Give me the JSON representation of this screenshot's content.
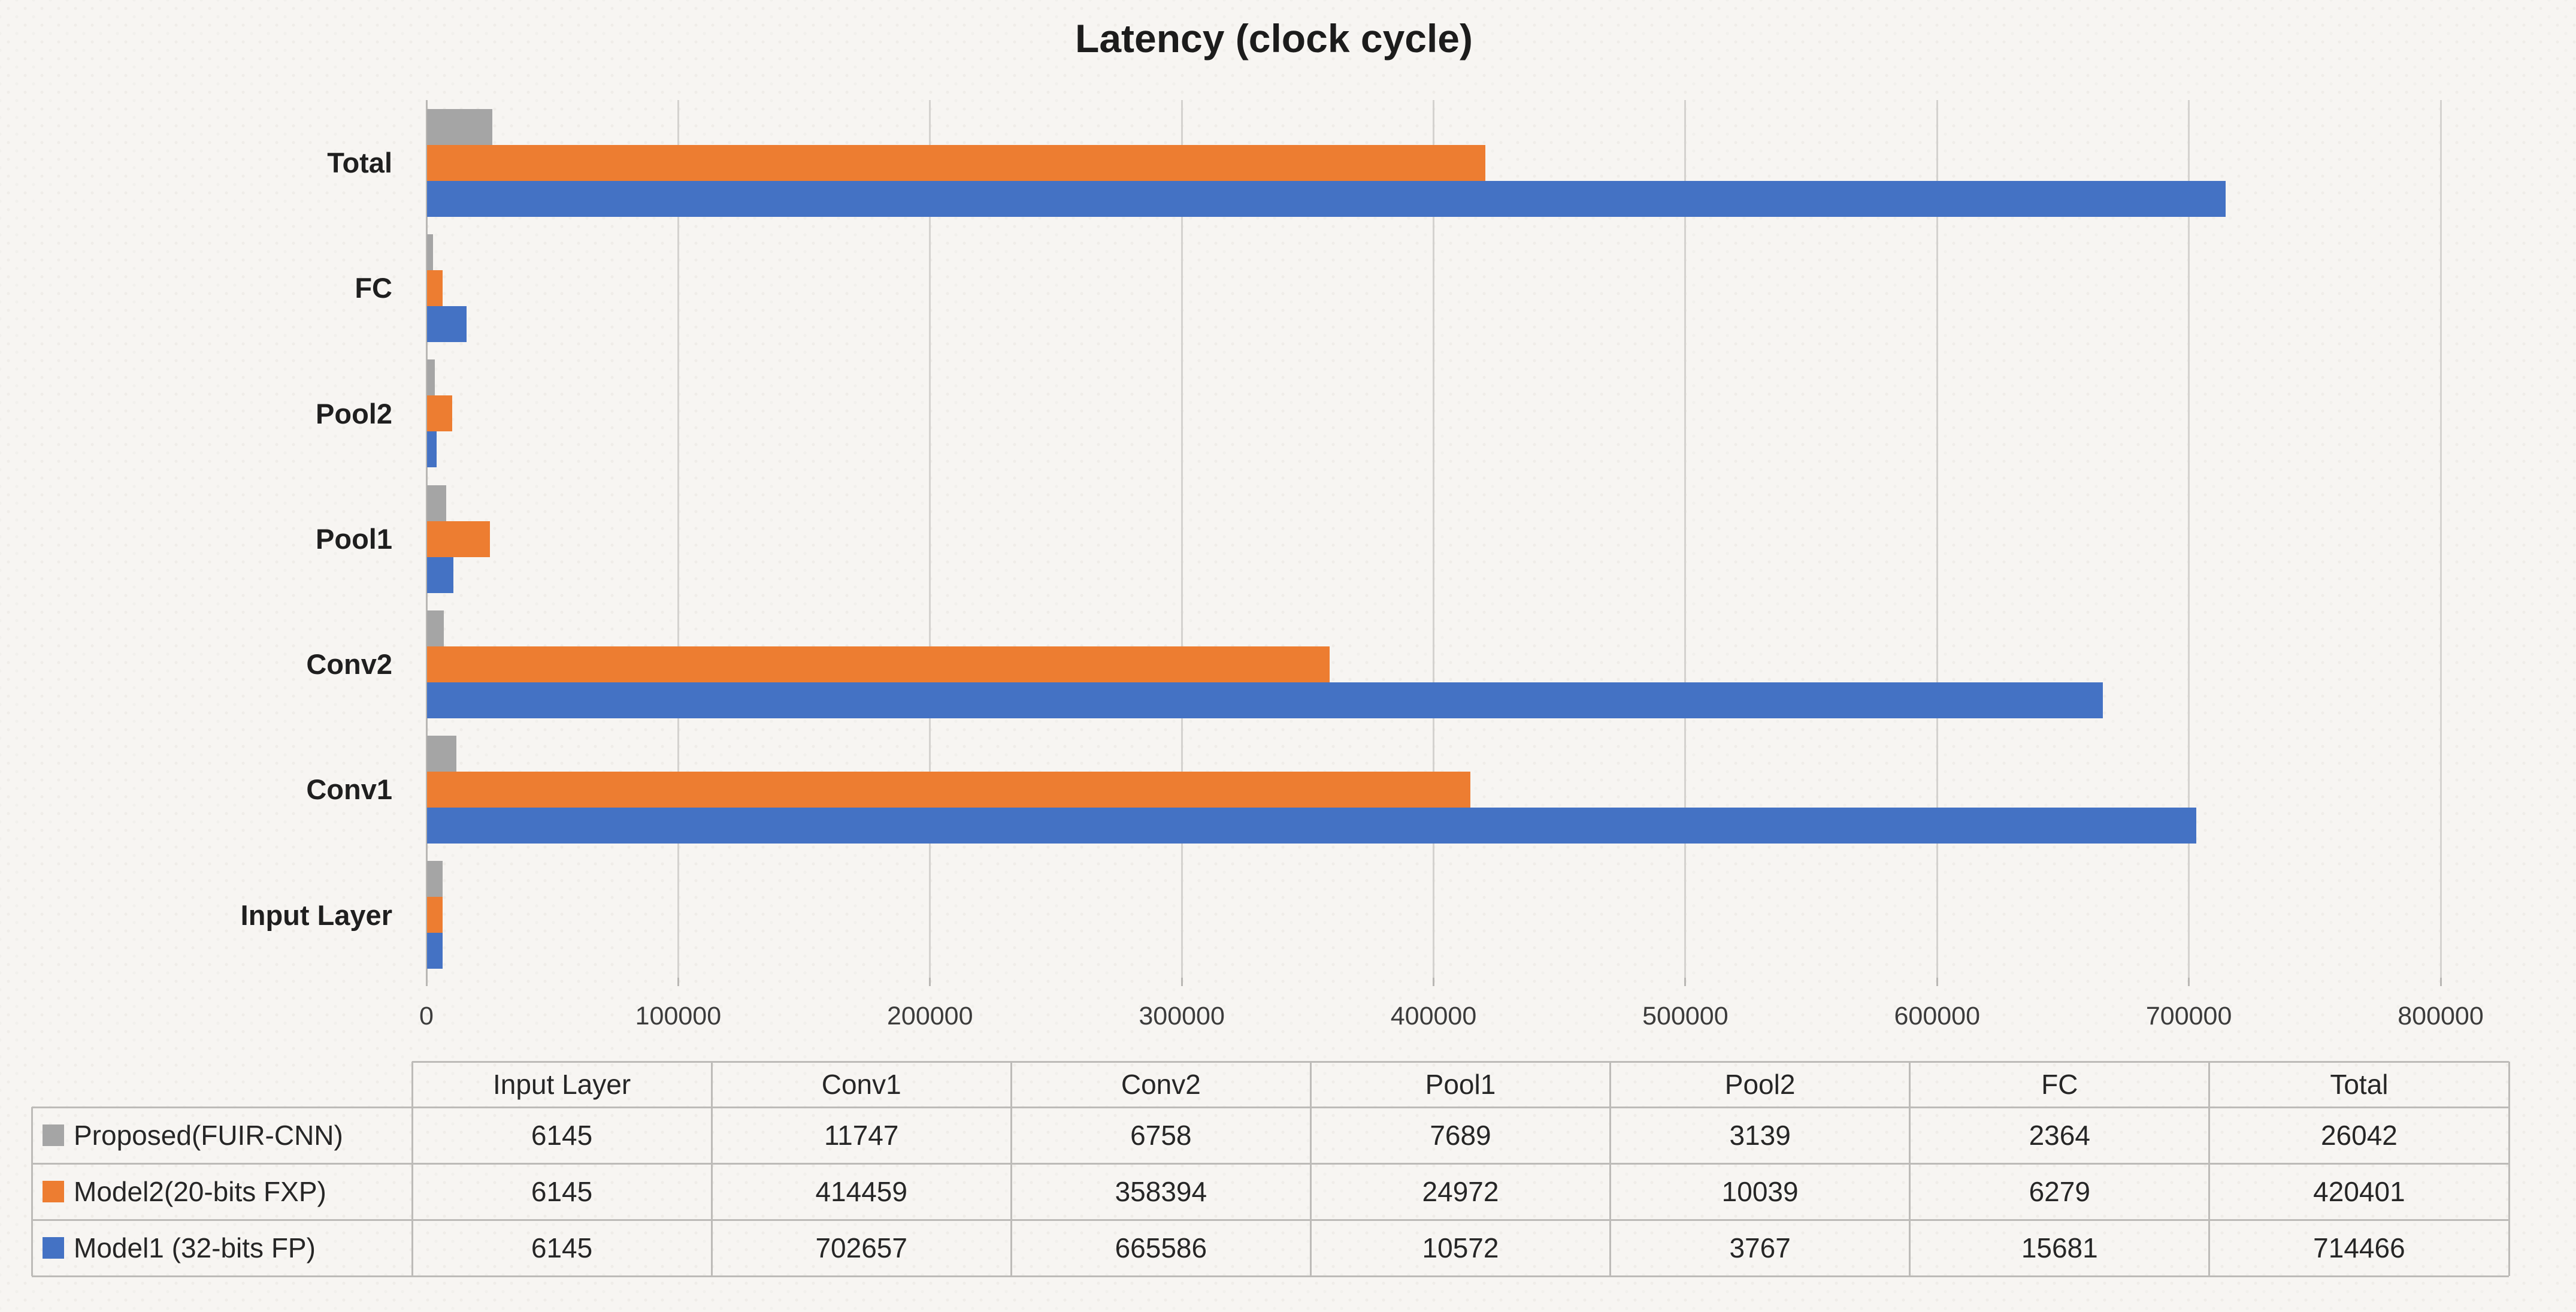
{
  "title": "Latency (clock cycle)",
  "colors": {
    "series_gray": "#A5A5A5",
    "series_orange": "#ED7D31",
    "series_blue": "#4472C4",
    "gridline": "#D4D2CF",
    "axis_line": "#B9B7B4",
    "table_border": "#BDBBB8",
    "text": "#262626",
    "background": "#F7F5F2"
  },
  "chart_data": {
    "type": "bar",
    "orientation": "horizontal",
    "title": "Latency (clock cycle)",
    "categories": [
      "Input Layer",
      "Conv1",
      "Conv2",
      "Pool1",
      "Pool2",
      "FC",
      "Total"
    ],
    "category_axis_order_top_to_bottom": [
      "Total",
      "FC",
      "Pool2",
      "Pool1",
      "Conv2",
      "Conv1",
      "Input Layer"
    ],
    "series": [
      {
        "name": "Proposed(FUIR-CNN)",
        "color": "#A5A5A5",
        "values": [
          6145,
          11747,
          6758,
          7689,
          3139,
          2364,
          26042
        ]
      },
      {
        "name": "Model2(20-bits FXP)",
        "color": "#ED7D31",
        "values": [
          6145,
          414459,
          358394,
          24972,
          10039,
          6279,
          420401
        ]
      },
      {
        "name": "Model1 (32-bits FP)",
        "color": "#4472C4",
        "values": [
          6145,
          702657,
          665586,
          10572,
          3767,
          15681,
          714466
        ]
      }
    ],
    "xlim": [
      0,
      800000
    ],
    "x_tick_labels": [
      "0",
      "100000",
      "200000",
      "300000",
      "400000",
      "500000",
      "600000",
      "700000",
      "800000"
    ],
    "grid": true,
    "legend_position": "data-table-left-column"
  },
  "table": {
    "column_headers": [
      "Input Layer",
      "Conv1",
      "Conv2",
      "Pool1",
      "Pool2",
      "FC",
      "Total"
    ],
    "rows": [
      {
        "label": "Proposed(FUIR-CNN)",
        "swatch_color": "#A5A5A5",
        "values": [
          "6145",
          "11747",
          "6758",
          "7689",
          "3139",
          "2364",
          "26042"
        ]
      },
      {
        "label": "Model2(20-bits FXP)",
        "swatch_color": "#ED7D31",
        "values": [
          "6145",
          "414459",
          "358394",
          "24972",
          "10039",
          "6279",
          "420401"
        ]
      },
      {
        "label": "Model1 (32-bits FP)",
        "swatch_color": "#4472C4",
        "values": [
          "6145",
          "702657",
          "665586",
          "10572",
          "3767",
          "15681",
          "714466"
        ]
      }
    ]
  }
}
